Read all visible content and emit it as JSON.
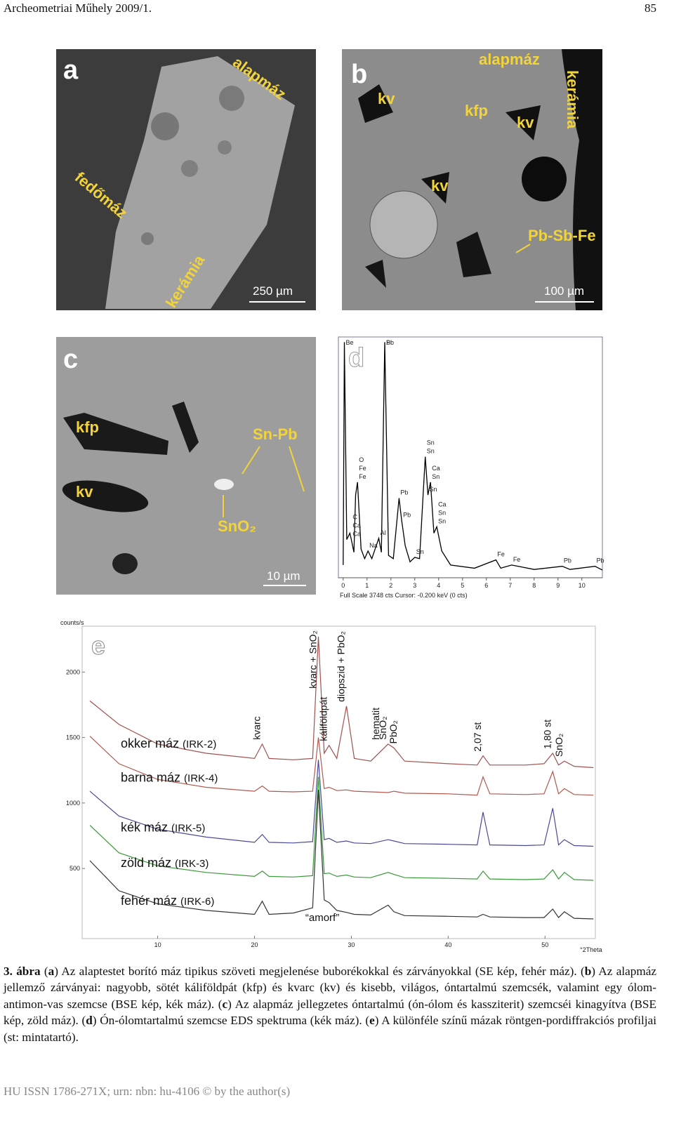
{
  "header": {
    "journal": "Archeometriai Műhely 2009/1.",
    "page": "85"
  },
  "panels": {
    "a": {
      "letter": "a",
      "labels": [
        "alapmáz",
        "fedőmáz",
        "kerámia"
      ],
      "scale": "250 µm"
    },
    "b": {
      "letter": "b",
      "labels": [
        "alapmáz",
        "kerámia",
        "kv",
        "kfp",
        "kv",
        "kv",
        "Pb-Sb-Fe"
      ],
      "scale": "100 µm"
    },
    "c": {
      "letter": "c",
      "labels": [
        "kfp",
        "kv",
        "Sn-Pb",
        "SnO₂"
      ],
      "scale": "10 µm"
    }
  },
  "chart_data": [
    {
      "type": "line",
      "letter": "d",
      "footer": "Full Scale 3748 cts  Cursor: -0.200 keV (0 cts)",
      "xlim": [
        -0.2,
        10.86
      ],
      "ylim": [
        0,
        3748
      ],
      "xticks": [
        0,
        1,
        2,
        3,
        4,
        5,
        6,
        7,
        8,
        9,
        10
      ],
      "color": "#000000",
      "x": [
        0,
        0.05,
        0.15,
        0.28,
        0.34,
        0.45,
        0.52,
        0.6,
        0.75,
        0.9,
        1.04,
        1.2,
        1.49,
        1.6,
        1.74,
        1.9,
        2.1,
        2.34,
        2.45,
        2.6,
        2.8,
        3.0,
        3.2,
        3.44,
        3.55,
        3.66,
        3.8,
        3.92,
        4.13,
        4.5,
        5.5,
        6.4,
        6.6,
        7.06,
        8,
        9.18,
        9.5,
        10.55,
        10.86
      ],
      "values": [
        200,
        3700,
        600,
        700,
        600,
        400,
        1300,
        1500,
        450,
        300,
        420,
        300,
        620,
        400,
        3700,
        350,
        300,
        1250,
        900,
        500,
        250,
        320,
        300,
        1900,
        1300,
        1500,
        700,
        800,
        420,
        200,
        150,
        280,
        150,
        200,
        130,
        180,
        130,
        180,
        120
      ],
      "peak_labels": [
        {
          "label": "Be",
          "x": 0.05
        },
        {
          "label": "Pb",
          "x": 1.74
        },
        {
          "label": "Si",
          "x": 1.74
        },
        {
          "label": "O",
          "x": 0.6
        },
        {
          "label": "Fe",
          "x": 0.6
        },
        {
          "label": "Fe",
          "x": 0.6
        },
        {
          "label": "C",
          "x": 0.34
        },
        {
          "label": "Ca",
          "x": 0.34
        },
        {
          "label": "Ca",
          "x": 0.34
        },
        {
          "label": "Na",
          "x": 1.04
        },
        {
          "label": "Al",
          "x": 1.49
        },
        {
          "label": "Pb",
          "x": 2.34
        },
        {
          "label": "Pb",
          "x": 2.45
        },
        {
          "label": "Sn",
          "x": 3.44
        },
        {
          "label": "Sn",
          "x": 3.44
        },
        {
          "label": "Sn",
          "x": 3.55
        },
        {
          "label": "Ca",
          "x": 3.66
        },
        {
          "label": "Sn",
          "x": 3.66
        },
        {
          "label": "Ca",
          "x": 3.92
        },
        {
          "label": "Sn",
          "x": 3.92
        },
        {
          "label": "Sn",
          "x": 3.92
        },
        {
          "label": "Sn",
          "x": 3.0
        },
        {
          "label": "Fe",
          "x": 6.4
        },
        {
          "label": "Fe",
          "x": 7.06
        },
        {
          "label": "Pb",
          "x": 9.18
        },
        {
          "label": "Pb",
          "x": 10.55
        }
      ]
    },
    {
      "type": "line",
      "letter": "e",
      "ylabel": "counts/s",
      "xlabel": "°2Theta",
      "xlim": [
        2.2,
        55.2
      ],
      "ylim": [
        -35,
        2350
      ],
      "xticks": [
        10,
        20,
        30,
        40,
        50
      ],
      "yticks": [
        500,
        1000,
        1500,
        2000
      ],
      "x": [
        3,
        6,
        10,
        15,
        20,
        20.8,
        21.5,
        24,
        26,
        26.6,
        27.2,
        27.7,
        28.5,
        29.5,
        30.3,
        32,
        33.8,
        34.4,
        35.5,
        40,
        43.0,
        43.6,
        44.3,
        48,
        49.9,
        50.8,
        51.4,
        52,
        53,
        55
      ],
      "series": [
        {
          "name": "okker máz",
          "code": "(IRK-2)",
          "color": "#a0524f",
          "values": [
            1780,
            1600,
            1450,
            1380,
            1340,
            1450,
            1340,
            1330,
            1340,
            2270,
            1380,
            1440,
            1340,
            1740,
            1340,
            1320,
            1450,
            1420,
            1320,
            1300,
            1290,
            1360,
            1290,
            1290,
            1300,
            1380,
            1290,
            1320,
            1280,
            1270
          ]
        },
        {
          "name": "barna máz",
          "code": "(IRK-4)",
          "color": "#b05a50",
          "values": [
            1510,
            1300,
            1180,
            1120,
            1090,
            1130,
            1090,
            1085,
            1090,
            1500,
            1110,
            1120,
            1095,
            1100,
            1090,
            1085,
            1080,
            1090,
            1075,
            1070,
            1060,
            1200,
            1070,
            1065,
            1070,
            1240,
            1070,
            1110,
            1065,
            1060
          ]
        },
        {
          "name": "kék máz",
          "code": "(IRK-5)",
          "color": "#4a4a9a",
          "values": [
            1090,
            900,
            800,
            740,
            700,
            760,
            700,
            695,
            705,
            1330,
            720,
            730,
            700,
            710,
            695,
            690,
            720,
            710,
            690,
            685,
            680,
            930,
            680,
            675,
            680,
            960,
            680,
            720,
            675,
            670
          ]
        },
        {
          "name": "zöld máz",
          "code": "(IRK-3)",
          "color": "#3a9a3a",
          "values": [
            830,
            620,
            520,
            470,
            440,
            480,
            440,
            435,
            445,
            1200,
            460,
            465,
            440,
            450,
            435,
            430,
            470,
            455,
            430,
            425,
            420,
            480,
            420,
            415,
            420,
            490,
            420,
            470,
            415,
            410
          ]
        },
        {
          "name": "fehér máz",
          "code": "(IRK-6)",
          "color": "#333333",
          "values": [
            560,
            330,
            230,
            180,
            150,
            250,
            150,
            160,
            200,
            1100,
            260,
            240,
            180,
            165,
            150,
            145,
            220,
            170,
            140,
            135,
            130,
            150,
            130,
            125,
            125,
            190,
            125,
            170,
            120,
            115
          ]
        }
      ],
      "annotations": [
        {
          "label": "kvarc",
          "x": 20.8
        },
        {
          "label": "kvarc + SnO₂",
          "x": 26.6
        },
        {
          "label": "káliföldpát",
          "x": 27.7
        },
        {
          "label": "diopszid + PbO₂",
          "x": 29.5
        },
        {
          "label": "hematit",
          "x": 33.1
        },
        {
          "label": "SnO₂",
          "x": 33.8
        },
        {
          "label": "PbO₂",
          "x": 34.9
        },
        {
          "label": "2,07 st",
          "x": 43.6
        },
        {
          "label": "1,80 st",
          "x": 50.8
        },
        {
          "label": "SnO₂",
          "x": 52
        }
      ],
      "note": {
        "label": "“amorf”",
        "x": 27
      }
    }
  ],
  "caption": [
    {
      "text": "3. ábra",
      "bold": true
    },
    {
      "text": " ("
    },
    {
      "text": "a",
      "bold": true
    },
    {
      "text": ") Az alaptestet borító máz tipikus szöveti megjelenése buborékokkal és zárványokkal (SE kép, fehér máz). ("
    },
    {
      "text": "b",
      "bold": true
    },
    {
      "text": ") Az alapmáz jellemző zárványai: nagyobb, sötét káliföldpát (kfp) és kvarc (kv) és kisebb, világos, óntartalmú szemcsék, valamint egy ólom-antimon-vas szemcse (BSE kép, kék máz). ("
    },
    {
      "text": "c",
      "bold": true
    },
    {
      "text": ") Az alapmáz jellegzetes óntartalmú (ón-ólom és kassziterit) szemcséi kinagyítva (BSE kép, zöld máz). ("
    },
    {
      "text": "d",
      "bold": true
    },
    {
      "text": ") Ón-ólomtartalmú szemcse EDS spektruma (kék máz). ("
    },
    {
      "text": "e",
      "bold": true
    },
    {
      "text": ") A különféle színű mázak röntgen-pordiffrakciós profiljai (st: mintatartó)."
    }
  ],
  "footer": "HU ISSN 1786-271X; urn: nbn: hu-4106 © by the author(s)"
}
